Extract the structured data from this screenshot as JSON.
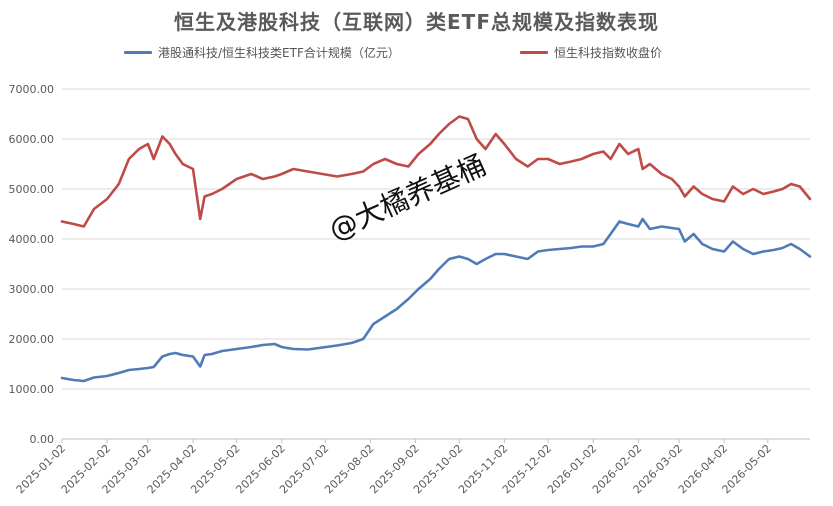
{
  "chart_data": {
    "type": "line",
    "title": "恒生及港股科技（互联网）类ETF总规模及指数表现",
    "xlabel": "",
    "ylabel": "",
    "ylim": [
      0,
      7000
    ],
    "yticks": [
      "0.00",
      "1000.00",
      "2000.00",
      "3000.00",
      "4000.00",
      "5000.00",
      "6000.00",
      "7000.00"
    ],
    "xticks": [
      "2025-01-02",
      "2025-02-02",
      "2025-03-02",
      "2025-04-02",
      "2025-05-02",
      "2025-06-02",
      "2025-07-02",
      "2025-08-02",
      "2025-09-02",
      "2025-10-02",
      "2025-11-02",
      "2025-12-02",
      "2026-01-02",
      "2026-02-02",
      "2026-03-02",
      "2026-04-02",
      "2026-05-02"
    ],
    "x_range": [
      "2025-01-02",
      "2026-05-31"
    ],
    "grid": true,
    "legend_position": "top",
    "series": [
      {
        "name": "港股通科技/恒生科技类ETF合计规模（亿元）",
        "color": "#4F7CB6",
        "x": [
          "2025-01-02",
          "2025-01-10",
          "2025-01-17",
          "2025-01-24",
          "2025-02-02",
          "2025-02-10",
          "2025-02-17",
          "2025-02-24",
          "2025-03-02",
          "2025-03-06",
          "2025-03-12",
          "2025-03-17",
          "2025-03-21",
          "2025-03-26",
          "2025-04-02",
          "2025-04-07",
          "2025-04-10",
          "2025-04-15",
          "2025-04-22",
          "2025-05-02",
          "2025-05-12",
          "2025-05-20",
          "2025-05-28",
          "2025-06-02",
          "2025-06-10",
          "2025-06-20",
          "2025-06-30",
          "2025-07-10",
          "2025-07-20",
          "2025-07-28",
          "2025-08-04",
          "2025-08-12",
          "2025-08-20",
          "2025-08-28",
          "2025-09-04",
          "2025-09-12",
          "2025-09-18",
          "2025-09-25",
          "2025-10-02",
          "2025-10-08",
          "2025-10-14",
          "2025-10-20",
          "2025-10-27",
          "2025-11-02",
          "2025-11-10",
          "2025-11-18",
          "2025-11-25",
          "2025-12-02",
          "2025-12-10",
          "2025-12-18",
          "2025-12-25",
          "2026-01-02",
          "2026-01-09",
          "2026-01-14",
          "2026-01-20",
          "2026-01-26",
          "2026-02-02",
          "2026-02-05",
          "2026-02-10",
          "2026-02-18",
          "2026-02-25",
          "2026-03-02",
          "2026-03-06",
          "2026-03-12",
          "2026-03-18",
          "2026-03-25",
          "2026-04-02",
          "2026-04-08",
          "2026-04-15",
          "2026-04-22",
          "2026-04-29",
          "2026-05-06",
          "2026-05-12",
          "2026-05-18",
          "2026-05-24",
          "2026-05-31"
        ],
        "values": [
          1220,
          1180,
          1160,
          1230,
          1260,
          1320,
          1380,
          1400,
          1420,
          1440,
          1650,
          1700,
          1720,
          1680,
          1650,
          1450,
          1680,
          1700,
          1760,
          1800,
          1840,
          1880,
          1900,
          1840,
          1800,
          1790,
          1830,
          1870,
          1920,
          2000,
          2300,
          2450,
          2600,
          2800,
          3000,
          3200,
          3400,
          3600,
          3650,
          3600,
          3500,
          3600,
          3700,
          3700,
          3650,
          3600,
          3750,
          3780,
          3800,
          3820,
          3850,
          3850,
          3900,
          4100,
          4350,
          4300,
          4250,
          4400,
          4200,
          4250,
          4220,
          4200,
          3950,
          4100,
          3900,
          3800,
          3750,
          3950,
          3800,
          3700,
          3750,
          3780,
          3820,
          3900,
          3800,
          3650
        ]
      },
      {
        "name": "恒生科技指数收盘价",
        "color": "#BE4B48",
        "x": [
          "2025-01-02",
          "2025-01-10",
          "2025-01-17",
          "2025-01-24",
          "2025-02-02",
          "2025-02-10",
          "2025-02-17",
          "2025-02-24",
          "2025-03-02",
          "2025-03-06",
          "2025-03-12",
          "2025-03-17",
          "2025-03-21",
          "2025-03-26",
          "2025-04-02",
          "2025-04-07",
          "2025-04-10",
          "2025-04-15",
          "2025-04-22",
          "2025-05-02",
          "2025-05-12",
          "2025-05-20",
          "2025-05-28",
          "2025-06-02",
          "2025-06-10",
          "2025-06-20",
          "2025-06-30",
          "2025-07-10",
          "2025-07-20",
          "2025-07-28",
          "2025-08-04",
          "2025-08-12",
          "2025-08-20",
          "2025-08-28",
          "2025-09-04",
          "2025-09-12",
          "2025-09-18",
          "2025-09-25",
          "2025-10-02",
          "2025-10-08",
          "2025-10-14",
          "2025-10-20",
          "2025-10-27",
          "2025-11-02",
          "2025-11-10",
          "2025-11-18",
          "2025-11-25",
          "2025-12-02",
          "2025-12-10",
          "2025-12-18",
          "2025-12-25",
          "2026-01-02",
          "2026-01-09",
          "2026-01-14",
          "2026-01-20",
          "2026-01-26",
          "2026-02-02",
          "2026-02-05",
          "2026-02-10",
          "2026-02-18",
          "2026-02-25",
          "2026-03-02",
          "2026-03-06",
          "2026-03-12",
          "2026-03-18",
          "2026-03-25",
          "2026-04-02",
          "2026-04-08",
          "2026-04-15",
          "2026-04-22",
          "2026-04-29",
          "2026-05-06",
          "2026-05-12",
          "2026-05-18",
          "2026-05-24",
          "2026-05-31"
        ],
        "values": [
          4350,
          4300,
          4250,
          4600,
          4800,
          5100,
          5600,
          5800,
          5900,
          5600,
          6050,
          5900,
          5700,
          5500,
          5400,
          4400,
          4850,
          4900,
          5000,
          5200,
          5300,
          5200,
          5250,
          5300,
          5400,
          5350,
          5300,
          5250,
          5300,
          5350,
          5500,
          5600,
          5500,
          5450,
          5700,
          5900,
          6100,
          6300,
          6450,
          6400,
          6000,
          5800,
          6100,
          5900,
          5600,
          5450,
          5600,
          5600,
          5500,
          5550,
          5600,
          5700,
          5750,
          5600,
          5900,
          5700,
          5800,
          5400,
          5500,
          5300,
          5200,
          5050,
          4850,
          5050,
          4900,
          4800,
          4750,
          5050,
          4900,
          5000,
          4900,
          4950,
          5000,
          5100,
          5050,
          4800
        ]
      }
    ]
  },
  "watermark": "@大橘养基桶"
}
